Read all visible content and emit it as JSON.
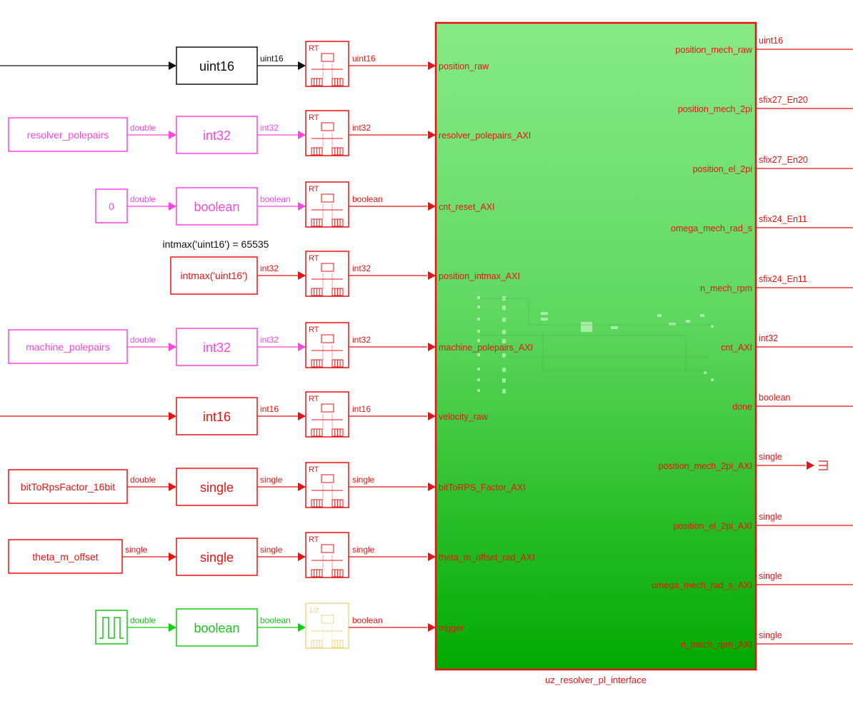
{
  "colors": {
    "red": "#ee1111",
    "pink": "#ff44e0",
    "green": "#11cc11",
    "black": "#111111",
    "yellow": "#ecd98a"
  },
  "annotation": "intmax('uint16') = 65535",
  "rows": [
    {
      "source": "",
      "source_color": "black",
      "in_label": "",
      "conv": "uint16",
      "conv_color": "black",
      "conv_out": "uint16",
      "rt": "RT",
      "rt_color": "red",
      "rt_out": "uint16",
      "port": "position_raw"
    },
    {
      "source": "resolver_polepairs",
      "source_color": "pink",
      "in_label": "double",
      "conv": "int32",
      "conv_color": "pink",
      "conv_out": "int32",
      "rt": "RT",
      "rt_color": "red",
      "rt_out": "int32",
      "port": "resolver_polepairs_AXI"
    },
    {
      "source": "0",
      "source_color": "pink",
      "in_label": "double",
      "conv": "boolean",
      "conv_color": "pink",
      "conv_out": "boolean",
      "rt": "RT",
      "rt_color": "red",
      "rt_out": "boolean",
      "port": "cnt_reset_AXI"
    },
    {
      "source": "",
      "source_color": "red",
      "in_label": "",
      "conv": "intmax('uint16')",
      "conv_color": "red",
      "conv_out": "int32",
      "rt": "RT",
      "rt_color": "red",
      "rt_out": "int32",
      "port": "position_intmax_AXI"
    },
    {
      "source": "machine_polepairs",
      "source_color": "pink",
      "in_label": "double",
      "conv": "int32",
      "conv_color": "pink",
      "conv_out": "int32",
      "rt": "RT",
      "rt_color": "red",
      "rt_out": "int32",
      "port": "machine_polepairs_AXI"
    },
    {
      "source": "",
      "source_color": "red",
      "in_label": "",
      "conv": "int16",
      "conv_color": "red",
      "conv_out": "int16",
      "rt": "RT",
      "rt_color": "red",
      "rt_out": "int16",
      "port": "velocity_raw"
    },
    {
      "source": "bitToRpsFactor_16bit",
      "source_color": "red",
      "in_label": "double",
      "conv": "single",
      "conv_color": "red",
      "conv_out": "single",
      "rt": "RT",
      "rt_color": "red",
      "rt_out": "single",
      "port": "bitToRPS_Factor_AXI"
    },
    {
      "source": "theta_m_offset",
      "source_color": "red",
      "in_label": "single",
      "conv": "single",
      "conv_color": "red",
      "conv_out": "single",
      "rt": "RT",
      "rt_color": "red",
      "rt_out": "single",
      "port": "theta_m_offset_rad_AXI"
    },
    {
      "source": "pulse-generator-icon",
      "source_color": "green",
      "in_label": "double",
      "conv": "boolean",
      "conv_color": "green",
      "conv_out": "boolean",
      "rt": "1/z",
      "rt_color": "yellow",
      "rt_out": "boolean",
      "port": "trigger"
    }
  ],
  "subsystem": {
    "name": "uz_resolver_pl_interface",
    "outputs": [
      {
        "port": "position_mech_raw",
        "type": "uint16"
      },
      {
        "port": "position_mech_2pi",
        "type": "sfix27_En20"
      },
      {
        "port": "position_el_2pi",
        "type": "sfix27_En20"
      },
      {
        "port": "omega_mech_rad_s",
        "type": "sfix24_En11"
      },
      {
        "port": "n_mech_rpm",
        "type": "sfix24_En11"
      },
      {
        "port": "cnt_AXI",
        "type": "int32"
      },
      {
        "port": "done",
        "type": "boolean"
      },
      {
        "port": "position_mech_2pi_AXI",
        "type": "single",
        "terminated": true
      },
      {
        "port": "position_el_2pi_AXI",
        "type": "single"
      },
      {
        "port": "omega_mech_rad_s_AXI",
        "type": "single"
      },
      {
        "port": "n_mech_rpm_AXI",
        "type": "single"
      }
    ]
  }
}
